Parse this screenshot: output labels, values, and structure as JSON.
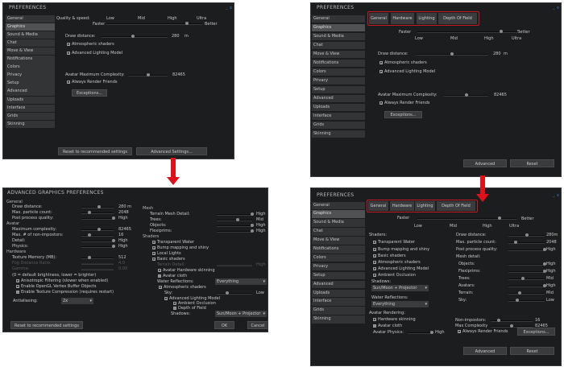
{
  "colors": {
    "panel_bg": "#1c1d1e",
    "sidebar_item": "#333436",
    "sidebar_selected": "#505153",
    "text": "#c9c9c9",
    "highlight_red": "#e0101a",
    "tab_outline": "#c41a24"
  },
  "sidebar_items": [
    "General",
    "Graphics",
    "Sound & Media",
    "Chat",
    "Move & View",
    "Notifications",
    "Colors",
    "Privacy",
    "Setup",
    "Advanced",
    "Uploads",
    "Interface",
    "Grids",
    "Skinning"
  ],
  "sidebar_selected": "Graphics",
  "old_prefs": {
    "title": "PREFERENCES",
    "window_controls": {
      "minimize": "_",
      "close": "x"
    },
    "quality_label": "Quality & speed:",
    "levels": [
      "Low",
      "Mid",
      "High",
      "Ultra"
    ],
    "faster": "Faster",
    "better": "Better",
    "draw_distance": {
      "label": "Draw distance:",
      "value": "280",
      "unit": "m"
    },
    "atmospheric_shaders": {
      "label": "Atmospheric shaders",
      "checked": true
    },
    "advanced_lighting": {
      "label": "Advanced Lighting Model",
      "checked": true
    },
    "avatar_complexity": {
      "label": "Avatar Maximum Complexity:",
      "value": "82465"
    },
    "always_render_friends": {
      "label": "Always Render Friends",
      "checked": true
    },
    "exceptions_button": "Exceptions...",
    "reset_button": "Reset to recommended settings",
    "advanced_button": "Advanced Settings..."
  },
  "old_advanced": {
    "title": "ADVANCED GRAPHICS PREFERENCES",
    "general_heading": "General",
    "draw_distance": {
      "label": "Draw distance:",
      "value": "280 m"
    },
    "max_particles": {
      "label": "Max. particle count:",
      "value": "2048"
    },
    "post_process": {
      "label": "Post process quality:",
      "value": "High"
    },
    "avatar_heading": "Avatar",
    "max_complexity": {
      "label": "Maximum complexity:",
      "value": "82465"
    },
    "max_non_impostors": {
      "label": "Max. # of non-impostors:",
      "value": "16"
    },
    "detail": {
      "label": "Detail:",
      "value": "High"
    },
    "physics": {
      "label": "Physics:",
      "value": "High"
    },
    "hardware_heading": "Hardware",
    "texture_memory": {
      "label": "Texture Memory (MB):",
      "value": "512"
    },
    "fog_distance": {
      "label": "Fog Distance Ratio:",
      "value": "4.0"
    },
    "gamma": {
      "label": "Gamma:",
      "value": "0.00"
    },
    "gamma_note": "(0 = default brightness, lower = brighter)",
    "anisotropic": {
      "label": "Anisotropic Filtering (slower when enabled)",
      "checked": true
    },
    "vbo": {
      "label": "Enable OpenGL Vertex Buffer Objects",
      "checked": true
    },
    "texture_compression": {
      "label": "Enable Texture Compression (requires restart)",
      "checked": false
    },
    "antialiasing": {
      "label": "Antialiasing:",
      "value": "2x"
    },
    "mesh_heading": "Mesh",
    "terrain_mesh": {
      "label": "Terrain Mesh Detail:",
      "value": "High"
    },
    "trees": {
      "label": "Trees:",
      "value": "Mid"
    },
    "objects": {
      "label": "Objects:",
      "value": "High"
    },
    "flexiprims": {
      "label": "Flexiprims:",
      "value": "High"
    },
    "shaders_heading": "Shaders",
    "transparent_water": {
      "label": "Transparent Water",
      "checked": true
    },
    "bump_mapping": {
      "label": "Bump mapping and shiny",
      "checked": true
    },
    "local_lights": {
      "label": "Local Lights",
      "checked": true
    },
    "basic_shaders": {
      "label": "Basic shaders",
      "checked": true
    },
    "terrain_detail": {
      "label": "Terrain Detail:",
      "value": "High"
    },
    "hardware_skinning": {
      "label": "Avatar Hardware skinning",
      "checked": true
    },
    "avatar_cloth": {
      "label": "Avatar cloth",
      "checked": false
    },
    "water_reflections": {
      "label": "Water Reflections:",
      "value": "Everything"
    },
    "atmospheric_shaders": {
      "label": "Atmospheric shaders",
      "checked": true
    },
    "sky": {
      "label": "Sky:",
      "value": "Low"
    },
    "advanced_lighting": {
      "label": "Advanced Lighting Model",
      "checked": true
    },
    "ambient_occlusion": {
      "label": "Ambient Occlusion",
      "checked": true
    },
    "depth_of_field": {
      "label": "Depth of Field",
      "checked": false
    },
    "shadows": {
      "label": "Shadows:",
      "value": "Sun/Moon + Projector"
    },
    "reset_button": "Reset to recommended settings",
    "ok_button": "OK",
    "cancel_button": "Cancel"
  },
  "new_prefs": {
    "title": "PREFERENCES",
    "window_controls": {
      "minimize": "_",
      "close": "x"
    },
    "tabs": [
      "General",
      "Hardware",
      "Lighting",
      "Depth Of Field"
    ],
    "faster": "Faster",
    "better": "Better",
    "levels": [
      "Low",
      "Mid",
      "High",
      "Ultra"
    ],
    "draw_distance": {
      "label": "Draw distance:",
      "value": "280",
      "unit": "m"
    },
    "atmospheric_shaders": {
      "label": "Atmospheric shaders",
      "checked": true
    },
    "advanced_lighting": {
      "label": "Advanced Lighting Model",
      "checked": true
    },
    "avatar_complexity": {
      "label": "Avatar Maximum Complexity:",
      "value": "82465"
    },
    "always_render_friends": {
      "label": "Always Render Friends",
      "checked": true
    },
    "exceptions_button": "Exceptions...",
    "advanced_button": "Advanced",
    "reset_button": "Reset"
  },
  "new_advanced": {
    "title": "PREFERENCES",
    "window_controls": {
      "minimize": "_",
      "close": "x"
    },
    "tabs": [
      "General",
      "Hardware",
      "Lighting",
      "Depth Of Field"
    ],
    "faster": "Faster",
    "better": "Better",
    "levels": [
      "Low",
      "Mid",
      "High",
      "Ultra"
    ],
    "shaders_heading": "Shaders:",
    "transparent_water": {
      "label": "Transparent Water",
      "checked": true
    },
    "bump_mapping": {
      "label": "Bump mapping and shiny",
      "checked": true
    },
    "basic_shaders": {
      "label": "Basic shaders",
      "checked": true
    },
    "atmospheric_shaders": {
      "label": "Atmospheric shaders",
      "checked": true
    },
    "advanced_lighting": {
      "label": "Advanced Lighting Model",
      "checked": true
    },
    "ambient_occlusion": {
      "label": "Ambient Occlusion",
      "checked": true
    },
    "shadows": {
      "label": "Shadows:",
      "value": "Sun/Moon + Projector"
    },
    "water_reflections": {
      "label": "Water Reflections:",
      "value": "Everything"
    },
    "avatar_rendering_heading": "Avatar Rendering:",
    "hardware_skinning": {
      "label": "Hardware skinning",
      "checked": true
    },
    "avatar_cloth": {
      "label": "Avatar cloth",
      "checked": false
    },
    "avatar_physics": {
      "label": "Avatar Physics:",
      "value": "High"
    },
    "draw_distance": {
      "label": "Draw distance:",
      "value": "280m"
    },
    "max_particles": {
      "label": "Max. particle count:",
      "value": "2048"
    },
    "post_process": {
      "label": "Post process quality:",
      "value": "High"
    },
    "mesh_heading": "Mesh detail:",
    "objects": {
      "label": "Objects:",
      "value": "High"
    },
    "flexiprims": {
      "label": "Flexiprims:",
      "value": "High"
    },
    "trees": {
      "label": "Trees:",
      "value": "Mid"
    },
    "avatars": {
      "label": "Avatars:",
      "value": "High"
    },
    "terrain": {
      "label": "Terrain:",
      "value": "Mid"
    },
    "sky": {
      "label": "Sky:",
      "value": "Low"
    },
    "non_impostors": {
      "label": "Non-impostors:",
      "value": "16"
    },
    "max_complexity": {
      "label": "Max Complexity",
      "value": "82465"
    },
    "always_render_friends": {
      "label": "Always Render Friends",
      "checked": true
    },
    "exceptions_button": "Exceptions...",
    "advanced_button": "Advanced",
    "reset_button": "Reset"
  }
}
